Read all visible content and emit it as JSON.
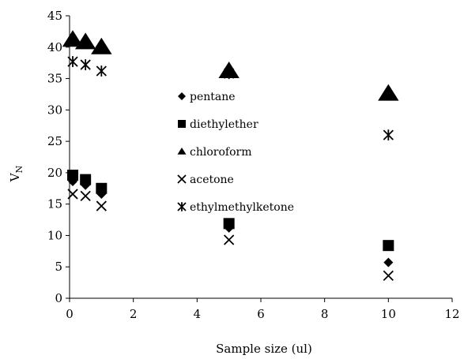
{
  "chart_data": {
    "type": "scatter",
    "title": "",
    "xlabel": "Sample size (ul)",
    "ylabel_main": "V",
    "ylabel_sub": "N",
    "xlim": [
      0,
      12
    ],
    "ylim": [
      0,
      45
    ],
    "xticks": [
      "0",
      "2",
      "4",
      "6",
      "8",
      "10",
      "12"
    ],
    "yticks": [
      "0",
      "5",
      "10",
      "15",
      "20",
      "25",
      "30",
      "35",
      "40",
      "45"
    ],
    "grid": false,
    "legend_position": "center",
    "series": [
      {
        "name": "pentane",
        "marker": "diamond",
        "x": [
          0.1,
          0.5,
          1,
          5,
          10
        ],
        "y": [
          18.6,
          18.0,
          16.6,
          11.2,
          5.7
        ]
      },
      {
        "name": "diethylether",
        "marker": "square",
        "x": [
          0.1,
          0.5,
          1,
          5,
          10
        ],
        "y": [
          19.6,
          18.9,
          17.5,
          11.9,
          8.4
        ]
      },
      {
        "name": "chloroform",
        "marker": "triangle",
        "x": [
          0.1,
          0.5,
          1,
          5,
          10
        ],
        "y": [
          41.2,
          40.8,
          40.0,
          36.2,
          32.6
        ]
      },
      {
        "name": "acetone",
        "marker": "x",
        "x": [
          0.1,
          0.5,
          1,
          5,
          10
        ],
        "y": [
          16.6,
          16.3,
          14.7,
          9.3,
          3.6
        ]
      },
      {
        "name": "ethylmethylketone",
        "marker": "star",
        "x": [
          0.1,
          0.5,
          1,
          5,
          10
        ],
        "y": [
          37.7,
          37.2,
          36.2,
          35.8,
          26.0
        ]
      }
    ]
  }
}
